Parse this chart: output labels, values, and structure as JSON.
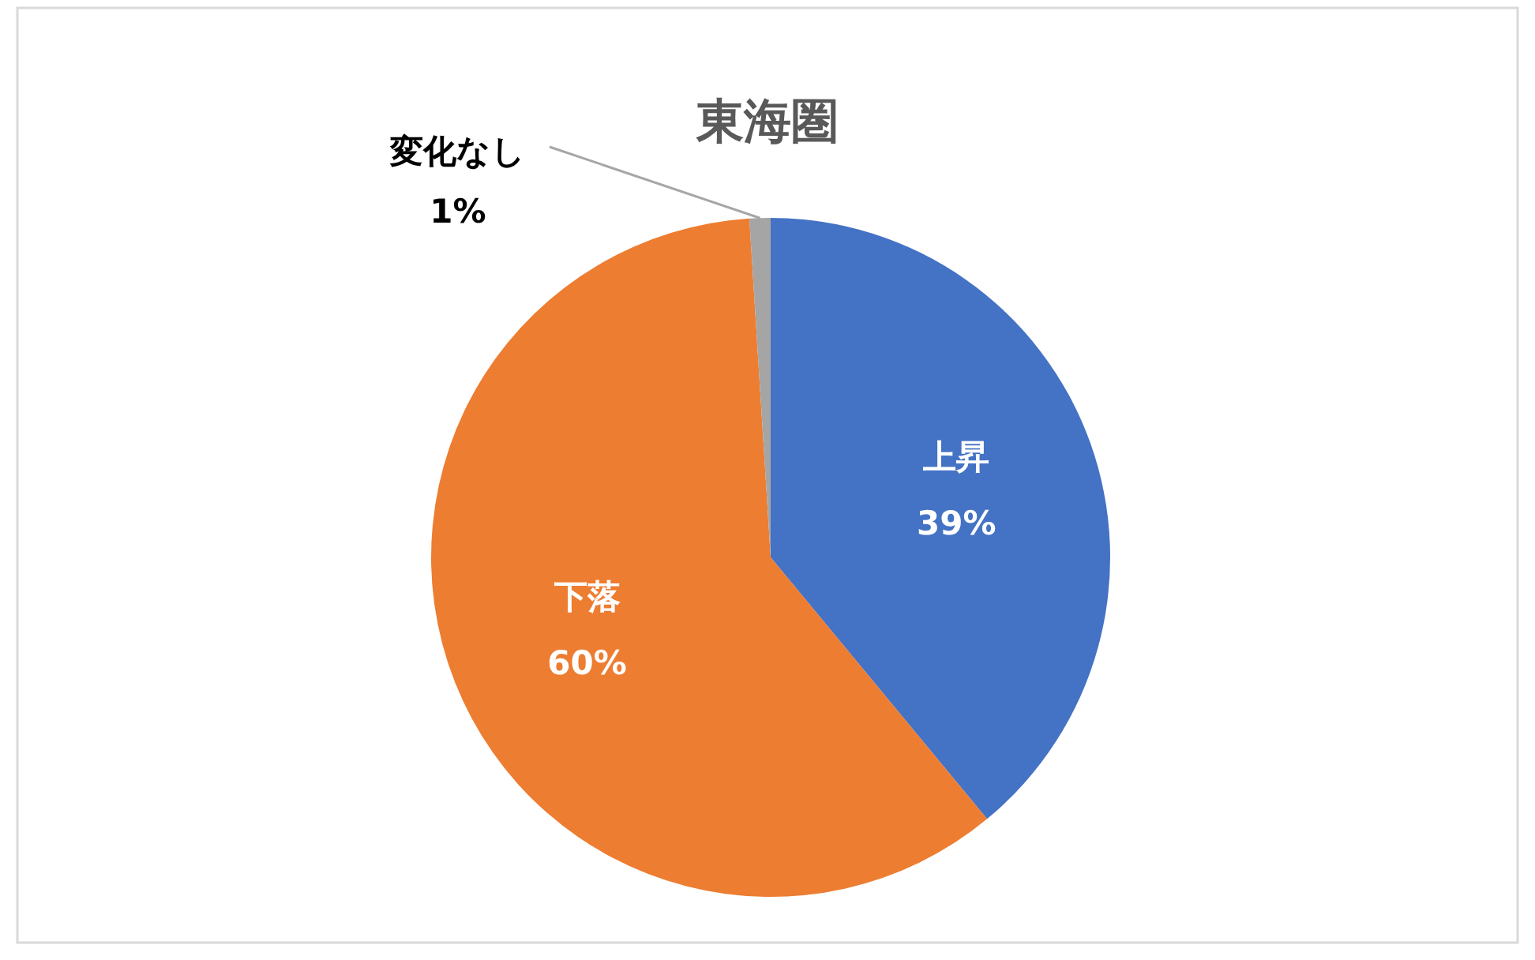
{
  "chart_data": {
    "type": "pie",
    "title": "東海圏",
    "categories": [
      "上昇",
      "下落",
      "変化なし"
    ],
    "values": [
      39,
      60,
      1
    ],
    "value_labels": [
      "39%",
      "60%",
      "1%"
    ],
    "colors": [
      "#4472c4",
      "#ed7d31",
      "#a5a5a5"
    ]
  }
}
